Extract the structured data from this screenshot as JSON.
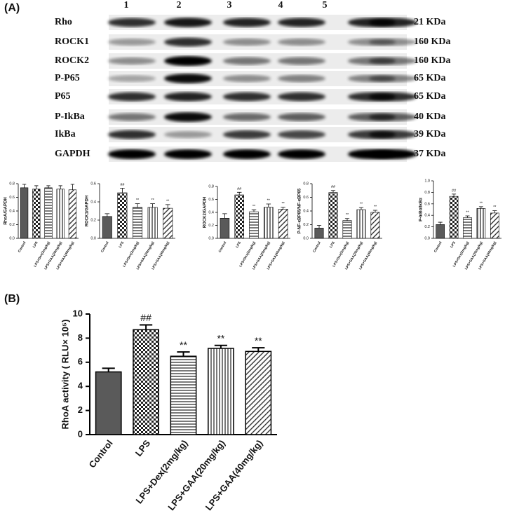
{
  "panel_a": {
    "label": "(A)",
    "lanes": [
      "1",
      "2",
      "3",
      "4",
      "5"
    ],
    "proteins": [
      {
        "name": "Rho",
        "size": "21 KDa"
      },
      {
        "name": "ROCK1",
        "size": "160 KDa"
      },
      {
        "name": "ROCK2",
        "size": "160 KDa"
      },
      {
        "name": "P-P65",
        "size": "65 KDa"
      },
      {
        "name": "P65",
        "size": "65 KDa"
      },
      {
        "name": "P-IkBa",
        "size": "40 KDa"
      },
      {
        "name": "IkBa",
        "size": "39 KDa"
      },
      {
        "name": "GAPDH",
        "size": "37 KDa"
      }
    ]
  },
  "panel_b": {
    "label": "(B)"
  },
  "chart_data": [
    {
      "type": "bar",
      "y_label": "RhoA/GAPDH",
      "categories": [
        "Control",
        "LPS",
        "LPS+Dex(2mg/kg)",
        "LPS+GAA(20mg/kg)",
        "LPS+GAA(40mg/kg)"
      ],
      "values": [
        0.74,
        0.72,
        0.74,
        0.72,
        0.71
      ],
      "errors": [
        0.05,
        0.05,
        0.03,
        0.05,
        0.08
      ],
      "annotations": [
        null,
        null,
        null,
        null,
        null
      ],
      "ylim": [
        0,
        0.8
      ],
      "yticks": [
        {
          "value": 0,
          "label": "0.0"
        },
        0.2,
        0.4,
        0.6,
        0.8
      ],
      "color": "#5a5a5a",
      "fills": [
        "solid",
        "checker",
        "hlines",
        "vlines",
        "diag"
      ]
    },
    {
      "type": "bar",
      "y_label": "ROCK1/GAPDH",
      "categories": [
        "Control",
        "LPS",
        "LPS+Dex(2mg/kg)",
        "LPS+GAA(20mg/kg)",
        "LPS+GAA(40mg/kg)"
      ],
      "values": [
        0.24,
        0.5,
        0.34,
        0.34,
        0.33
      ],
      "errors": [
        0.03,
        0.05,
        0.04,
        0.04,
        0.04
      ],
      "annotations": [
        null,
        "##",
        "**",
        "**",
        "**"
      ],
      "ylim": [
        0,
        0.6
      ],
      "yticks": [
        {
          "value": 0,
          "label": "0.0"
        },
        0.2,
        0.4,
        0.6
      ],
      "color": "#5a5a5a",
      "fills": [
        "solid",
        "checker",
        "hlines",
        "vlines",
        "diag"
      ]
    },
    {
      "type": "bar",
      "y_label": "ROCK2/GAPDH",
      "categories": [
        "Control",
        "LPS",
        "LPS+Dex(2mg/kg)",
        "LPS+GAA(20mg/kg)",
        "LPS+GAA(40mg/kg)"
      ],
      "values": [
        0.31,
        0.67,
        0.41,
        0.48,
        0.45
      ],
      "errors": [
        0.07,
        0.04,
        0.03,
        0.05,
        0.03
      ],
      "annotations": [
        null,
        "##",
        "**",
        "**",
        "**"
      ],
      "ylim": [
        0,
        0.8
      ],
      "yticks": [
        {
          "value": 0,
          "label": "0.0"
        },
        0.2,
        0.4,
        0.6,
        0.8
      ],
      "color": "#5a5a5a",
      "fills": [
        "solid",
        "checker",
        "hlines",
        "vlines",
        "diag"
      ]
    },
    {
      "type": "bar",
      "y_label": "P-NF-κBP65/NF-κBP65",
      "categories": [
        "Control",
        "LPS",
        "LPS+Dex(2mg/kg)",
        "LPS+GAA(20mg/kg)",
        "LPS+GAA(40mg/kg)"
      ],
      "values": [
        0.15,
        0.67,
        0.26,
        0.42,
        0.38
      ],
      "errors": [
        0.04,
        0.03,
        0.03,
        0.03,
        0.03
      ],
      "annotations": [
        null,
        "##",
        "**",
        "**",
        "**"
      ],
      "ylim": [
        0,
        0.8
      ],
      "yticks": [
        {
          "value": 0,
          "label": "0.0"
        },
        0.2,
        0.4,
        0.6,
        0.8
      ],
      "color": "#5a5a5a",
      "fills": [
        "solid",
        "checker",
        "hlines",
        "vlines",
        "diag"
      ]
    },
    {
      "type": "bar",
      "y_label": "P-IκBα/IκBα",
      "categories": [
        "Control",
        "LPS",
        "LPS+Dex(2mg/kg)",
        "LPS+GAA(20mg/kg)",
        "LPS+GAA(40mg/kg)"
      ],
      "values": [
        0.24,
        0.73,
        0.36,
        0.52,
        0.44
      ],
      "errors": [
        0.04,
        0.04,
        0.03,
        0.03,
        0.04
      ],
      "annotations": [
        null,
        "##",
        "**",
        "**",
        "**"
      ],
      "ylim": [
        0,
        1
      ],
      "yticks": [
        {
          "value": 0,
          "label": "0.0"
        },
        0.2,
        0.4,
        0.6,
        0.8,
        {
          "value": 1,
          "label": "1.0"
        }
      ],
      "color": "#5a5a5a",
      "fills": [
        "solid",
        "checker",
        "hlines",
        "vlines",
        "diag"
      ]
    },
    {
      "type": "bar",
      "y_label": "RhoA activity ( RLU× 10⁵)",
      "categories": [
        "Control",
        "LPS",
        "LPS+Dex(2mg/kg)",
        "LPS+GAA(20mg/kg)",
        "LPS+GAA(40mg/kg)"
      ],
      "values": [
        5.2,
        8.7,
        6.5,
        7.15,
        6.9
      ],
      "errors": [
        0.3,
        0.4,
        0.35,
        0.25,
        0.3
      ],
      "annotations": [
        null,
        "##",
        "**",
        "**",
        "**"
      ],
      "ylim": [
        0,
        10
      ],
      "yticks": [
        0,
        2,
        4,
        6,
        8,
        10
      ],
      "color": "#5a5a5a",
      "fills": [
        "solid",
        "checker",
        "hlines",
        "vlines",
        "diag"
      ]
    }
  ]
}
